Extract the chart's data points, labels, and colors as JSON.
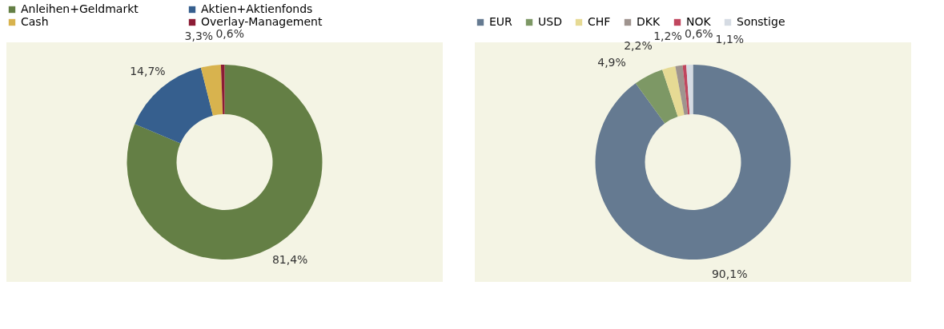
{
  "chart_data": [
    {
      "type": "donut",
      "categories": [
        "Anleihen+Geldmarkt",
        "Aktien+Aktienfonds",
        "Cash",
        "Overlay-Management"
      ],
      "values": [
        81.4,
        14.7,
        3.3,
        0.6
      ],
      "colors": [
        "#647f45",
        "#365f8e",
        "#d8b34e",
        "#8c1c35"
      ],
      "value_labels": [
        "81,4%",
        "14,7%",
        "3,3%",
        "0,6%"
      ],
      "legend": "top"
    },
    {
      "type": "donut",
      "categories": [
        "EUR",
        "USD",
        "CHF",
        "DKK",
        "NOK",
        "Sonstige"
      ],
      "values": [
        90.1,
        4.9,
        2.2,
        1.2,
        0.6,
        1.1
      ],
      "colors": [
        "#657a91",
        "#7d9865",
        "#e6da94",
        "#9f948f",
        "#c0465e",
        "#d5dbe3"
      ],
      "value_labels": [
        "90,1%",
        "4,9%",
        "2,2%",
        "1,2%",
        "0,6%",
        "1,1%"
      ],
      "legend": "top"
    }
  ]
}
